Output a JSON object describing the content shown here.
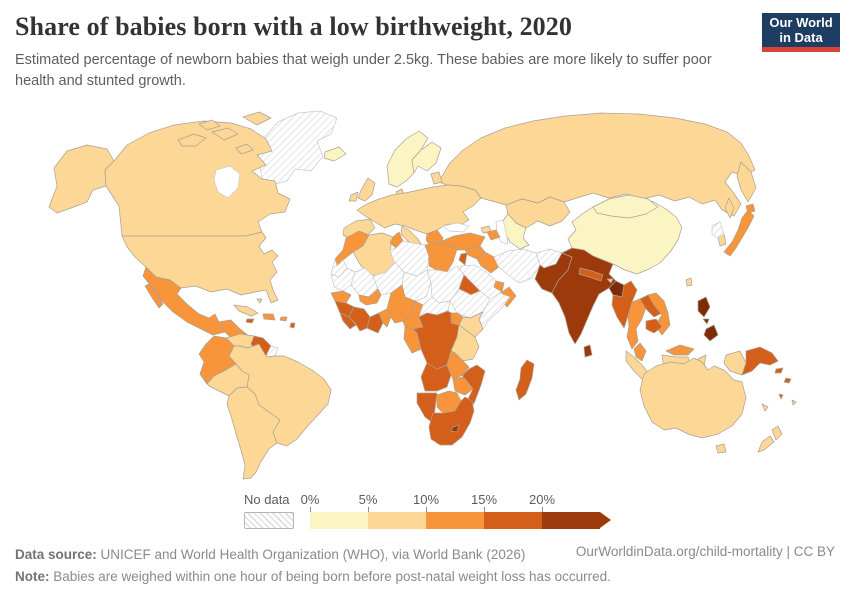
{
  "header": {
    "title": "Share of babies born with a low birthweight, 2020",
    "subtitle": "Estimated percentage of newborn babies that weigh under 2.5kg. These babies are more likely to suffer poor health and stunted growth.",
    "logo": {
      "line1": "Our World",
      "line2": "in Data",
      "bg_color": "#1d3d63",
      "accent_color": "#d7433b"
    }
  },
  "legend": {
    "no_data_label": "No data",
    "ticks": [
      "0%",
      "5%",
      "10%",
      "15%",
      "20%"
    ]
  },
  "footer": {
    "source_label": "Data source:",
    "source_text": " UNICEF and World Health Organization (WHO), via World Bank (2026)",
    "note_label": "Note:",
    "note_text": " Babies are weighed within one hour of being born before post-natal weight loss has occurred.",
    "credit": "OurWorldinData.org/child-mortality | CC BY"
  },
  "chart_data": {
    "type": "heatmap",
    "subtype": "choropleth_world_map",
    "title": "Share of babies born with a low birthweight, 2020",
    "unit": "% of newborn babies weighing under 2.5kg",
    "bins": [
      "0-5%",
      "5-10%",
      "10-15%",
      "15-20%",
      "20%+",
      "well above 20%"
    ],
    "bin_colors": [
      "#fbf4c3",
      "#fcd795",
      "#f8943a",
      "#d35f1b",
      "#9d3a0c",
      "#7e2b06"
    ],
    "no_data_style": "hatched",
    "legend_open_ended_arrow": true
  },
  "map": {
    "ocean_color": "#ffffff",
    "border_color": "#aaa096",
    "no_data_fill": "#ffffff",
    "no_data_border_color": "#c9c9c9",
    "hatch_color": "#d9d9d9",
    "regions": [
      {
        "name": "greenland",
        "bin": "no-data"
      },
      {
        "name": "alaska",
        "bin": 1
      },
      {
        "name": "canada",
        "bin": 1
      },
      {
        "name": "arctic-island-1",
        "bin": 1
      },
      {
        "name": "arctic-island-2",
        "bin": 1
      },
      {
        "name": "arctic-island-3",
        "bin": 1
      },
      {
        "name": "arctic-island-4",
        "bin": 1
      },
      {
        "name": "arctic-island-5",
        "bin": 1
      },
      {
        "name": "hudson-bay",
        "bin": "water"
      },
      {
        "name": "usa",
        "bin": 1
      },
      {
        "name": "mexico",
        "bin": 2
      },
      {
        "name": "baja-california",
        "bin": 2
      },
      {
        "name": "central-america",
        "bin": 2
      },
      {
        "name": "cuba",
        "bin": 1
      },
      {
        "name": "bahamas",
        "bin": 1
      },
      {
        "name": "hispaniola",
        "bin": 2
      },
      {
        "name": "jamaica",
        "bin": 3
      },
      {
        "name": "puerto-rico",
        "bin": 2
      },
      {
        "name": "lesser-antilles",
        "bin": 3
      },
      {
        "name": "venezuela",
        "bin": 1
      },
      {
        "name": "guyana-suriname",
        "bin": 3
      },
      {
        "name": "french-guiana",
        "bin": "no-data"
      },
      {
        "name": "brazil",
        "bin": 1
      },
      {
        "name": "colombia-ecuador",
        "bin": 2
      },
      {
        "name": "peru",
        "bin": 1
      },
      {
        "name": "southern-cone",
        "bin": 1
      },
      {
        "name": "russia",
        "bin": 1
      },
      {
        "name": "kamchatka",
        "bin": 1
      },
      {
        "name": "sakhalin",
        "bin": 1
      },
      {
        "name": "kazakhstan",
        "bin": 1
      },
      {
        "name": "central-asia",
        "bin": 0
      },
      {
        "name": "iceland",
        "bin": 0
      },
      {
        "name": "norway-sweden",
        "bin": 0
      },
      {
        "name": "finland",
        "bin": 0
      },
      {
        "name": "uk",
        "bin": 1
      },
      {
        "name": "ireland",
        "bin": 1
      },
      {
        "name": "denmark",
        "bin": 1
      },
      {
        "name": "baltic-states",
        "bin": 1
      },
      {
        "name": "western-europe",
        "bin": 1
      },
      {
        "name": "iberia",
        "bin": 1
      },
      {
        "name": "italy",
        "bin": 1
      },
      {
        "name": "sicily",
        "bin": 1
      },
      {
        "name": "sardinia",
        "bin": 1
      },
      {
        "name": "greece-albania",
        "bin": 2
      },
      {
        "name": "black-sea",
        "bin": "water"
      },
      {
        "name": "caspian-sea",
        "bin": "water"
      },
      {
        "name": "georgia-armenia",
        "bin": 1
      },
      {
        "name": "azerbaijan",
        "bin": 2
      },
      {
        "name": "turkey",
        "bin": 2
      },
      {
        "name": "syria",
        "bin": 2
      },
      {
        "name": "iraq",
        "bin": 2
      },
      {
        "name": "israel-jordan",
        "bin": 3
      },
      {
        "name": "saudi-arabia",
        "bin": "no-data"
      },
      {
        "name": "yemen",
        "bin": 3
      },
      {
        "name": "oman",
        "bin": 2
      },
      {
        "name": "uae",
        "bin": 2
      },
      {
        "name": "iran",
        "bin": "no-data"
      },
      {
        "name": "afghanistan",
        "bin": "no-data"
      },
      {
        "name": "china",
        "bin": 0
      },
      {
        "name": "mongolia",
        "bin": 0
      },
      {
        "name": "pakistan",
        "bin": 4
      },
      {
        "name": "india",
        "bin": 4
      },
      {
        "name": "nepal",
        "bin": 3
      },
      {
        "name": "bhutan",
        "bin": 1
      },
      {
        "name": "bangladesh",
        "bin": 5
      },
      {
        "name": "sri-lanka",
        "bin": 4
      },
      {
        "name": "taiwan",
        "bin": 1
      },
      {
        "name": "morocco",
        "bin": 2
      },
      {
        "name": "western-sahara",
        "bin": "no-data"
      },
      {
        "name": "algeria",
        "bin": 1
      },
      {
        "name": "tunisia",
        "bin": 2
      },
      {
        "name": "libya",
        "bin": "no-data"
      },
      {
        "name": "egypt",
        "bin": 2
      },
      {
        "name": "mauritania",
        "bin": "no-data"
      },
      {
        "name": "mali",
        "bin": "no-data"
      },
      {
        "name": "niger",
        "bin": "no-data"
      },
      {
        "name": "chad",
        "bin": "no-data"
      },
      {
        "name": "sudan",
        "bin": "no-data"
      },
      {
        "name": "eritrea",
        "bin": 3
      },
      {
        "name": "ethiopia",
        "bin": "no-data"
      },
      {
        "name": "somalia",
        "bin": "no-data"
      },
      {
        "name": "senegal",
        "bin": 2
      },
      {
        "name": "guinea",
        "bin": 3
      },
      {
        "name": "sierra-leone-liberia",
        "bin": 3
      },
      {
        "name": "cote-divoire",
        "bin": 3
      },
      {
        "name": "ghana",
        "bin": 3
      },
      {
        "name": "togo-benin",
        "bin": 2
      },
      {
        "name": "burkina-faso",
        "bin": 2
      },
      {
        "name": "nigeria",
        "bin": 2
      },
      {
        "name": "cameroon",
        "bin": 2
      },
      {
        "name": "central-african-republic",
        "bin": "no-data"
      },
      {
        "name": "uganda",
        "bin": 2
      },
      {
        "name": "kenya",
        "bin": 1
      },
      {
        "name": "dr-congo",
        "bin": 3
      },
      {
        "name": "gabon-congo",
        "bin": 2
      },
      {
        "name": "tanzania",
        "bin": 1
      },
      {
        "name": "angola",
        "bin": 3
      },
      {
        "name": "zambia",
        "bin": 2
      },
      {
        "name": "zimbabwe",
        "bin": 2
      },
      {
        "name": "mozambique",
        "bin": 3
      },
      {
        "name": "namibia",
        "bin": 3
      },
      {
        "name": "botswana",
        "bin": 2
      },
      {
        "name": "south-africa",
        "bin": 3
      },
      {
        "name": "lesotho",
        "bin": 4
      },
      {
        "name": "madagascar",
        "bin": 3
      },
      {
        "name": "myanmar",
        "bin": 3
      },
      {
        "name": "thailand",
        "bin": 2
      },
      {
        "name": "laos",
        "bin": 3
      },
      {
        "name": "vietnam",
        "bin": 2
      },
      {
        "name": "cambodia",
        "bin": 3
      },
      {
        "name": "malaysia-peninsula",
        "bin": 2
      },
      {
        "name": "malaysia-borneo",
        "bin": 2
      },
      {
        "name": "sumatra",
        "bin": 1
      },
      {
        "name": "java",
        "bin": 1
      },
      {
        "name": "borneo-indonesia",
        "bin": 1
      },
      {
        "name": "sulawesi",
        "bin": 1
      },
      {
        "name": "lesser-sunda",
        "bin": 1
      },
      {
        "name": "west-papua",
        "bin": 1
      },
      {
        "name": "philippines-luzon",
        "bin": 5
      },
      {
        "name": "philippines-visayas",
        "bin": 5
      },
      {
        "name": "philippines-mindanao",
        "bin": 5
      },
      {
        "name": "papua-new-guinea",
        "bin": 3
      },
      {
        "name": "new-britain",
        "bin": 3
      },
      {
        "name": "solomon-islands",
        "bin": 3
      },
      {
        "name": "vanuatu",
        "bin": 3
      },
      {
        "name": "new-caledonia",
        "bin": 1
      },
      {
        "name": "fiji",
        "bin": 1
      },
      {
        "name": "japan",
        "bin": 2
      },
      {
        "name": "hokkaido",
        "bin": 2
      },
      {
        "name": "south-korea",
        "bin": 1
      },
      {
        "name": "north-korea",
        "bin": "no-data"
      },
      {
        "name": "australia",
        "bin": 1
      },
      {
        "name": "tasmania",
        "bin": 1
      },
      {
        "name": "new-zealand-north",
        "bin": 1
      },
      {
        "name": "new-zealand-south",
        "bin": 1
      }
    ]
  }
}
